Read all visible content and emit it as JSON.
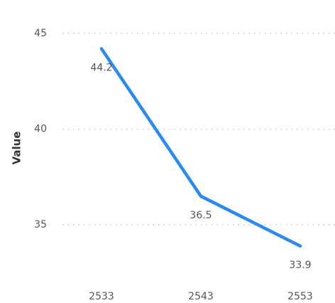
{
  "chart_data": {
    "type": "line",
    "ylabel": "Value",
    "categories": [
      "2533",
      "2543",
      "2553"
    ],
    "series": [
      {
        "name": "Value",
        "color": "#2a8af0",
        "values": [
          44.2,
          36.5,
          33.9
        ]
      }
    ],
    "ylim": [
      32,
      46
    ],
    "yticks": [
      35,
      40,
      45
    ],
    "grid": true
  }
}
